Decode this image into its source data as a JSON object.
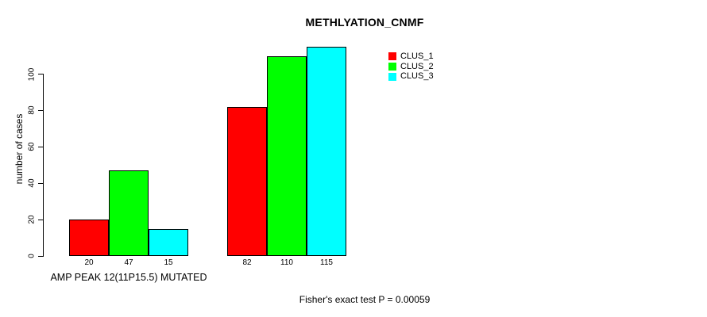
{
  "chart_data": {
    "type": "bar",
    "title": "METHLYATION_CNMF",
    "ylabel": "number of cases",
    "xlabel": "",
    "yticks": [
      0,
      20,
      40,
      60,
      80,
      100
    ],
    "ylim": [
      0,
      100
    ],
    "grid": false,
    "legend_position": "top-right",
    "categories": [
      "AMP PEAK 12(11P15.5) MUTATED",
      ""
    ],
    "series": [
      {
        "name": "CLUS_1",
        "color": "#ff0000",
        "values": [
          20,
          82
        ]
      },
      {
        "name": "CLUS_2",
        "color": "#00ff00",
        "values": [
          47,
          110
        ]
      },
      {
        "name": "CLUS_3",
        "color": "#00ffff",
        "values": [
          15,
          115
        ]
      }
    ],
    "bar_value_labels_shown": true,
    "annotation": "Fisher's exact test P = 0.00059"
  },
  "colors": {
    "background": "#ffffff",
    "axis": "#000000",
    "text": "#000000"
  }
}
